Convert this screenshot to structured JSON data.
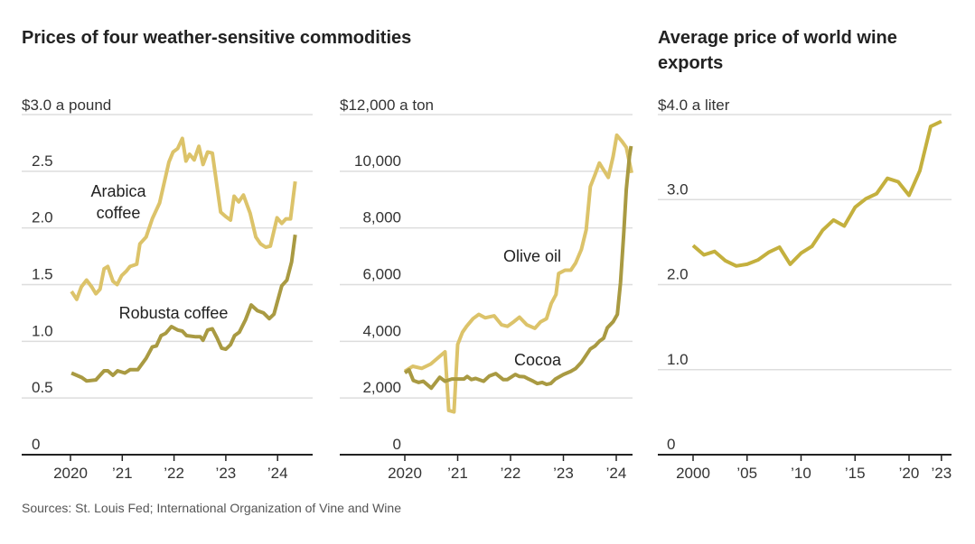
{
  "titles": {
    "left": "Prices of four weather-sensitive commodities",
    "right": "Average price of world wine exports"
  },
  "source": "Sources: St. Louis Fed; International Organization of Vine and Wine",
  "colors": {
    "light_gold": "#dcc36a",
    "dark_gold": "#a99a42",
    "wine": "#c4b03e",
    "grid": "#dddddd",
    "axis": "#222222"
  },
  "chart_data": [
    {
      "type": "line",
      "unit_label": "$3.0 a pound",
      "ylim": [
        0,
        3.0
      ],
      "yticks": [
        "0",
        "0.5",
        "1.0",
        "1.5",
        "2.0",
        "2.5"
      ],
      "ytick_values": [
        0,
        0.5,
        1.0,
        1.5,
        2.0,
        2.5,
        3.0
      ],
      "xticks": [
        "2020",
        "’21",
        "’22",
        "’23",
        "’24"
      ],
      "xtick_values": [
        2020,
        2021,
        2022,
        2023,
        2024
      ],
      "grid": true,
      "series": [
        {
          "name": "Arabica coffee",
          "color": "#dcc36a",
          "x": [
            2020.02,
            2020.12,
            2020.21,
            2020.31,
            2020.41,
            2020.49,
            2020.57,
            2020.65,
            2020.72,
            2020.82,
            2020.9,
            2020.99,
            2021.08,
            2021.15,
            2021.28,
            2021.34,
            2021.46,
            2021.58,
            2021.72,
            2021.9,
            2021.98,
            2022.07,
            2022.16,
            2022.23,
            2022.3,
            2022.39,
            2022.48,
            2022.56,
            2022.65,
            2022.74,
            2022.9,
            2023.0,
            2023.09,
            2023.16,
            2023.25,
            2023.34,
            2023.47,
            2023.58,
            2023.67,
            2023.77,
            2023.86,
            2023.99,
            2024.08,
            2024.16,
            2024.25,
            2024.34
          ],
          "y": [
            1.44,
            1.37,
            1.48,
            1.54,
            1.48,
            1.42,
            1.46,
            1.64,
            1.66,
            1.53,
            1.5,
            1.58,
            1.62,
            1.66,
            1.68,
            1.86,
            1.92,
            2.08,
            2.22,
            2.58,
            2.67,
            2.7,
            2.79,
            2.59,
            2.65,
            2.6,
            2.72,
            2.56,
            2.67,
            2.66,
            2.14,
            2.1,
            2.07,
            2.28,
            2.23,
            2.29,
            2.13,
            1.92,
            1.86,
            1.83,
            1.84,
            2.09,
            2.04,
            2.08,
            2.08,
            2.41
          ]
        },
        {
          "name": "Robusta coffee",
          "color": "#a99a42",
          "x": [
            2020.02,
            2020.12,
            2020.22,
            2020.31,
            2020.49,
            2020.65,
            2020.72,
            2020.82,
            2020.91,
            2021.05,
            2021.15,
            2021.3,
            2021.46,
            2021.58,
            2021.66,
            2021.75,
            2021.84,
            2021.95,
            2022.07,
            2022.16,
            2022.24,
            2022.42,
            2022.51,
            2022.56,
            2022.65,
            2022.74,
            2022.83,
            2022.92,
            2023.0,
            2023.09,
            2023.17,
            2023.26,
            2023.38,
            2023.49,
            2023.61,
            2023.73,
            2023.84,
            2023.93,
            2024.08,
            2024.18,
            2024.27,
            2024.34
          ],
          "y": [
            0.72,
            0.7,
            0.68,
            0.65,
            0.66,
            0.74,
            0.74,
            0.7,
            0.74,
            0.72,
            0.75,
            0.75,
            0.85,
            0.95,
            0.96,
            1.05,
            1.07,
            1.13,
            1.1,
            1.09,
            1.05,
            1.04,
            1.04,
            1.01,
            1.1,
            1.11,
            1.03,
            0.94,
            0.93,
            0.97,
            1.05,
            1.08,
            1.19,
            1.32,
            1.27,
            1.25,
            1.2,
            1.24,
            1.49,
            1.54,
            1.7,
            1.94
          ]
        }
      ]
    },
    {
      "type": "line",
      "unit_label": "$12,000 a ton",
      "ylim": [
        0,
        12000
      ],
      "yticks": [
        "0",
        "2,000",
        "4,000",
        "6,000",
        "8,000",
        "10,000"
      ],
      "ytick_values": [
        0,
        2000,
        4000,
        6000,
        8000,
        10000,
        12000
      ],
      "xticks": [
        "2020",
        "’21",
        "’22",
        "’23",
        "’24"
      ],
      "xtick_values": [
        2020,
        2021,
        2022,
        2023,
        2024
      ],
      "grid": true,
      "series": [
        {
          "name": "Olive oil",
          "color": "#dcc36a",
          "x": [
            2020.0,
            2020.15,
            2020.32,
            2020.49,
            2020.66,
            2020.76,
            2020.83,
            2020.93,
            2021.0,
            2021.09,
            2021.17,
            2021.29,
            2021.4,
            2021.52,
            2021.69,
            2021.83,
            2021.94,
            2022.06,
            2022.17,
            2022.31,
            2022.46,
            2022.57,
            2022.68,
            2022.77,
            2022.86,
            2022.91,
            2023.03,
            2023.14,
            2023.23,
            2023.34,
            2023.43,
            2023.51,
            2023.6,
            2023.68,
            2023.77,
            2023.85,
            2023.94,
            2024.01,
            2024.11,
            2024.19,
            2024.29
          ],
          "y": [
            2940,
            3120,
            3045,
            3200,
            3470,
            3630,
            1560,
            1510,
            3890,
            4320,
            4530,
            4800,
            4950,
            4830,
            4900,
            4580,
            4530,
            4690,
            4850,
            4580,
            4460,
            4690,
            4800,
            5330,
            5650,
            6390,
            6510,
            6510,
            6760,
            7240,
            7930,
            9460,
            9890,
            10290,
            10020,
            9780,
            10520,
            11270,
            11050,
            10840,
            9940
          ]
        },
        {
          "name": "Cocoa",
          "color": "#a99a42",
          "x": [
            2020.0,
            2020.08,
            2020.16,
            2020.26,
            2020.35,
            2020.5,
            2020.66,
            2020.76,
            2020.89,
            2021.12,
            2021.18,
            2021.26,
            2021.34,
            2021.49,
            2021.6,
            2021.72,
            2021.86,
            2021.94,
            2022.09,
            2022.17,
            2022.26,
            2022.34,
            2022.43,
            2022.51,
            2022.6,
            2022.68,
            2022.76,
            2022.85,
            2023.0,
            2023.14,
            2023.23,
            2023.34,
            2023.51,
            2023.6,
            2023.68,
            2023.76,
            2023.83,
            2023.94,
            2024.02,
            2024.08,
            2024.14,
            2024.19,
            2024.25,
            2024.28
          ],
          "y": [
            2890,
            2990,
            2620,
            2550,
            2590,
            2350,
            2730,
            2590,
            2670,
            2670,
            2760,
            2650,
            2690,
            2590,
            2780,
            2860,
            2650,
            2650,
            2830,
            2760,
            2750,
            2670,
            2590,
            2510,
            2550,
            2480,
            2510,
            2670,
            2830,
            2940,
            3040,
            3260,
            3730,
            3840,
            4000,
            4110,
            4480,
            4690,
            4950,
            6070,
            7770,
            9360,
            10520,
            10890
          ]
        }
      ]
    },
    {
      "type": "line",
      "unit_label": "$4.0 a liter",
      "ylim": [
        0,
        4.0
      ],
      "yticks": [
        "0",
        "1.0",
        "2.0",
        "3.0"
      ],
      "ytick_values": [
        0,
        1.0,
        2.0,
        3.0,
        4.0
      ],
      "xticks": [
        "2000",
        "’05",
        "’10",
        "’15",
        "’20",
        "’23"
      ],
      "xtick_values": [
        2000,
        2005,
        2010,
        2015,
        2020,
        2023
      ],
      "grid": true,
      "series": [
        {
          "color": "#c4b03e",
          "x": [
            2000,
            2001,
            2002,
            2003,
            2004,
            2005,
            2006,
            2007,
            2008,
            2009,
            2010,
            2011,
            2012,
            2013,
            2014,
            2015,
            2016,
            2017,
            2018,
            2019,
            2020,
            2021,
            2022,
            2023
          ],
          "y": [
            2.46,
            2.35,
            2.39,
            2.28,
            2.22,
            2.24,
            2.29,
            2.38,
            2.44,
            2.24,
            2.37,
            2.45,
            2.64,
            2.76,
            2.69,
            2.91,
            3.01,
            3.07,
            3.25,
            3.21,
            3.05,
            3.34,
            3.86,
            3.92
          ]
        }
      ]
    }
  ]
}
